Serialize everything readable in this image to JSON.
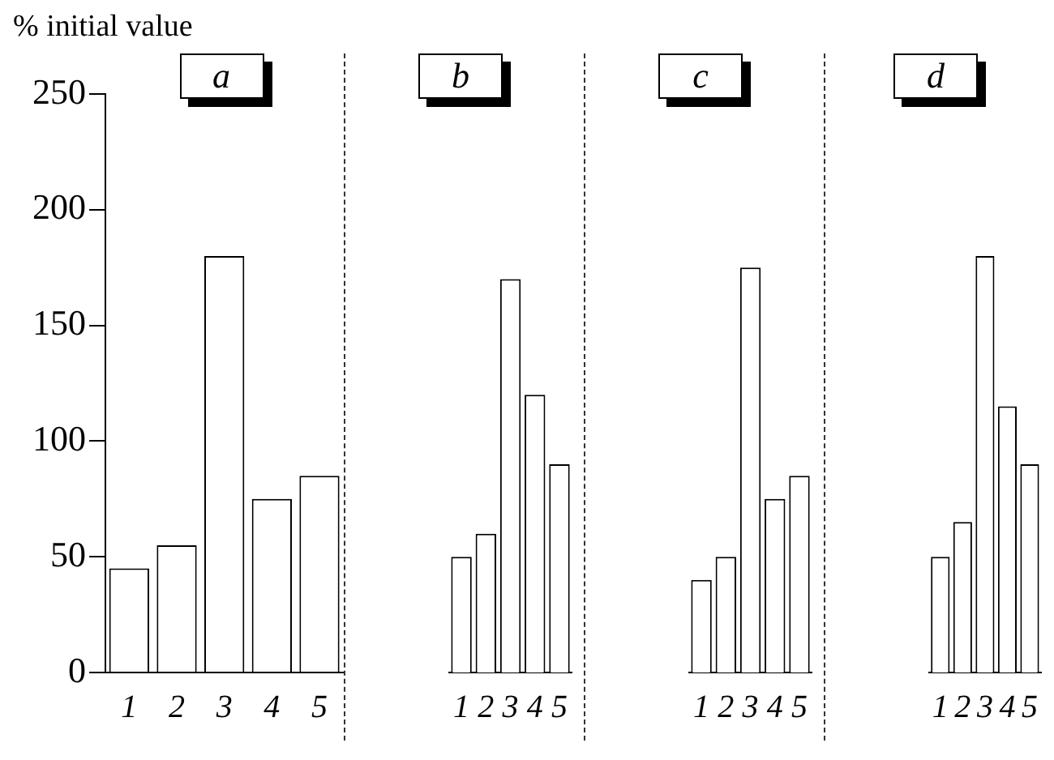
{
  "chart_data": [
    {
      "type": "bar",
      "title": "a",
      "ylabel": "% initial value",
      "categories": [
        "1",
        "2",
        "3",
        "4",
        "5"
      ],
      "values": [
        45,
        55,
        180,
        75,
        85
      ],
      "color": "#ffffff",
      "ylim": [
        0,
        250
      ],
      "yticks": [
        0,
        50,
        100,
        150,
        200,
        250
      ],
      "grid": false
    },
    {
      "type": "bar",
      "title": "b",
      "categories": [
        "1",
        "2",
        "3",
        "4",
        "5"
      ],
      "values": [
        50,
        60,
        170,
        120,
        90
      ],
      "color": "#ffffff",
      "ylim": [
        0,
        250
      ],
      "tick_labels": "x",
      "grid": false
    },
    {
      "type": "bar",
      "title": "c",
      "categories": [
        "1",
        "2",
        "3",
        "4",
        "5"
      ],
      "values": [
        40,
        50,
        175,
        75,
        85
      ],
      "color": "#ffffff",
      "ylim": [
        0,
        250
      ],
      "tick_labels": "x",
      "grid": false
    },
    {
      "type": "bar",
      "title": "d",
      "categories": [
        "1",
        "2",
        "3",
        "4",
        "5"
      ],
      "values": [
        50,
        65,
        180,
        115,
        90
      ],
      "color": "#ffffff",
      "ylim": [
        0,
        250
      ],
      "tick_labels": "x",
      "grid": false
    }
  ]
}
